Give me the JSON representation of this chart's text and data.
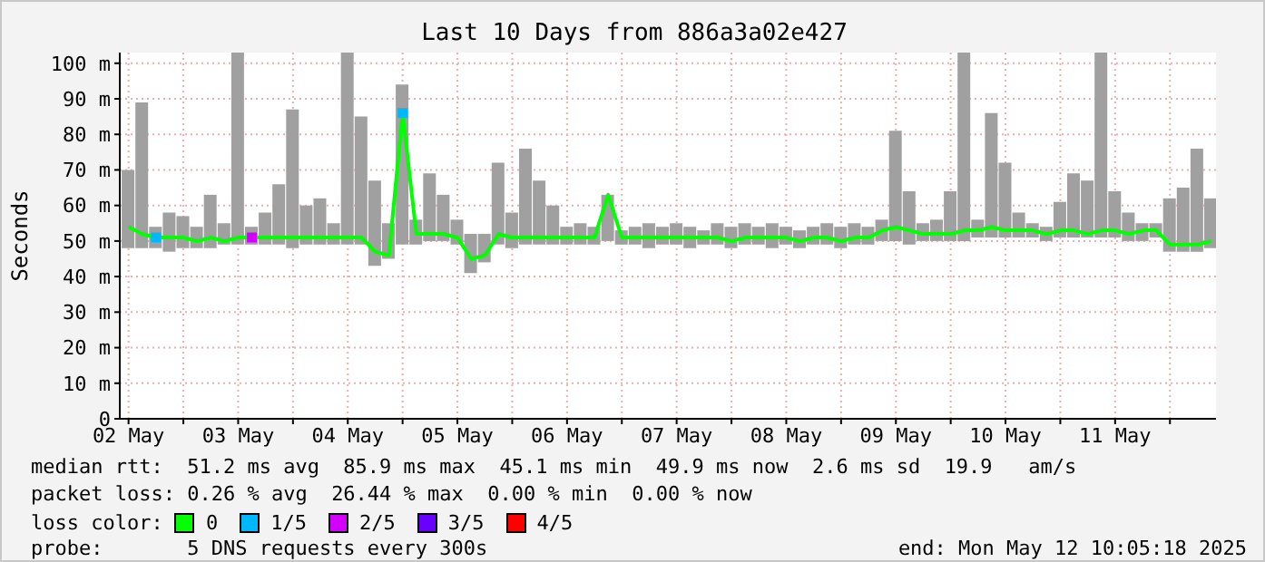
{
  "chart_data": {
    "type": "bar",
    "title": "Last 10 Days from 886a3a02e427",
    "ylabel": "Seconds",
    "annotations": [
      "median rtt:  51.2 ms avg  85.9 ms max  45.1 ms min  49.9 ms now  2.6 ms sd  19.9   am/s",
      "packet loss: 0.26 % avg  26.44 % max  0.00 % min  0.00 % now",
      "loss color:",
      "probe:       5 DNS requests every 300s",
      "end: Mon May 12 10:05:18 2025"
    ],
    "x": [
      "2025-05-02T12:00",
      "2025-05-02T15:00",
      "2025-05-02T18:00",
      "2025-05-02T21:00",
      "2025-05-03T00:00",
      "2025-05-03T03:00",
      "2025-05-03T06:00",
      "2025-05-03T09:00",
      "2025-05-03T12:00",
      "2025-05-03T15:00",
      "2025-05-03T18:00",
      "2025-05-03T21:00",
      "2025-05-04T00:00",
      "2025-05-04T03:00",
      "2025-05-04T06:00",
      "2025-05-04T09:00",
      "2025-05-04T12:00",
      "2025-05-04T15:00",
      "2025-05-04T18:00",
      "2025-05-04T21:00",
      "2025-05-05T00:00",
      "2025-05-05T03:00",
      "2025-05-05T06:00",
      "2025-05-05T09:00",
      "2025-05-05T12:00",
      "2025-05-05T15:00",
      "2025-05-05T18:00",
      "2025-05-05T21:00",
      "2025-05-06T00:00",
      "2025-05-06T03:00",
      "2025-05-06T06:00",
      "2025-05-06T09:00",
      "2025-05-06T12:00",
      "2025-05-06T15:00",
      "2025-05-06T18:00",
      "2025-05-06T21:00",
      "2025-05-07T00:00",
      "2025-05-07T03:00",
      "2025-05-07T06:00",
      "2025-05-07T09:00",
      "2025-05-07T12:00",
      "2025-05-07T15:00",
      "2025-05-07T18:00",
      "2025-05-07T21:00",
      "2025-05-08T00:00",
      "2025-05-08T03:00",
      "2025-05-08T06:00",
      "2025-05-08T09:00",
      "2025-05-08T12:00",
      "2025-05-08T15:00",
      "2025-05-08T18:00",
      "2025-05-08T21:00",
      "2025-05-09T00:00",
      "2025-05-09T03:00",
      "2025-05-09T06:00",
      "2025-05-09T09:00",
      "2025-05-09T12:00",
      "2025-05-09T15:00",
      "2025-05-09T18:00",
      "2025-05-09T21:00",
      "2025-05-10T00:00",
      "2025-05-10T03:00",
      "2025-05-10T06:00",
      "2025-05-10T09:00",
      "2025-05-10T12:00",
      "2025-05-10T15:00",
      "2025-05-10T18:00",
      "2025-05-10T21:00",
      "2025-05-11T00:00",
      "2025-05-11T03:00",
      "2025-05-11T06:00",
      "2025-05-11T09:00",
      "2025-05-11T12:00",
      "2025-05-11T15:00",
      "2025-05-11T18:00",
      "2025-05-11T21:00",
      "2025-05-12T00:00",
      "2025-05-12T03:00",
      "2025-05-12T06:00",
      "2025-05-12T09:00"
    ],
    "series": [
      {
        "color": "#a0a0a0",
        "base": [
          48,
          48,
          48,
          47,
          48,
          48,
          48,
          49,
          49,
          49,
          49,
          49,
          48,
          49,
          49,
          49,
          49,
          49,
          43,
          45,
          49,
          49,
          50,
          50,
          49,
          41,
          44,
          49,
          48,
          49,
          49,
          49,
          49,
          49,
          49,
          50,
          49,
          49,
          48,
          49,
          49,
          48,
          49,
          49,
          48,
          49,
          49,
          48,
          49,
          48,
          49,
          49,
          48,
          49,
          49,
          50,
          50,
          49,
          50,
          50,
          50,
          50,
          51,
          51,
          51,
          51,
          51,
          50,
          51,
          51,
          51,
          51,
          51,
          50,
          50,
          51,
          47,
          47,
          47,
          48
        ],
        "values": [
          22,
          41,
          6,
          11,
          9,
          6,
          15,
          6,
          54,
          5,
          9,
          17,
          39,
          11,
          13,
          6,
          54,
          36,
          24,
          10,
          45,
          7,
          19,
          13,
          7,
          11,
          8,
          23,
          10,
          27,
          18,
          11,
          5,
          6,
          5,
          13,
          4,
          5,
          7,
          5,
          6,
          6,
          4,
          6,
          6,
          6,
          5,
          7,
          5,
          5,
          5,
          6,
          6,
          6,
          5,
          6,
          31,
          15,
          5,
          6,
          14,
          53,
          5,
          35,
          21,
          7,
          4,
          4,
          10,
          18,
          16,
          52,
          13,
          8,
          5,
          4,
          15,
          18,
          29,
          14
        ]
      },
      {
        "name": "0",
        "type": "line",
        "color": "#00ff00",
        "values": [
          54,
          52,
          51,
          51,
          51,
          50,
          51,
          50,
          51,
          51,
          51,
          51,
          51,
          51,
          51,
          51,
          51,
          51,
          47,
          46,
          86,
          52,
          52,
          52,
          51,
          45,
          46,
          52,
          51,
          51,
          51,
          51,
          51,
          51,
          51,
          63,
          51,
          51,
          51,
          51,
          51,
          51,
          51,
          51,
          50,
          51,
          51,
          51,
          51,
          50,
          51,
          51,
          50,
          51,
          51,
          53,
          54,
          53,
          52,
          52,
          52,
          53,
          53,
          54,
          53,
          53,
          53,
          52,
          53,
          53,
          52,
          53,
          53,
          52,
          53,
          53,
          49,
          49,
          49,
          50
        ]
      },
      {
        "name": "1/5",
        "type": "scatter",
        "marker": "square",
        "color": "#00b8ff",
        "x": [
          "2025-05-02T18:00",
          "2025-05-05T00:00"
        ],
        "values": [
          51,
          86
        ]
      },
      {
        "name": "2/5",
        "type": "scatter",
        "marker": "square",
        "color": "#d300ff",
        "x": [
          "2025-05-03T15:00"
        ],
        "values": [
          51
        ]
      },
      {
        "name": "3/5",
        "type": "scatter",
        "marker": "square",
        "color": "#6a00ff",
        "values": [
          null,
          null,
          null,
          null,
          null,
          null,
          null,
          null,
          null,
          null,
          null,
          null,
          null,
          null,
          null,
          null,
          null,
          null,
          null,
          null,
          null,
          null,
          null,
          null,
          null,
          null,
          null,
          null,
          null,
          null,
          null,
          null,
          null,
          null,
          null,
          null,
          null,
          null,
          null,
          null,
          null,
          null,
          null,
          null,
          null,
          null,
          null,
          null,
          null,
          null,
          null,
          null,
          null,
          null,
          null,
          null,
          null,
          null,
          null,
          null,
          null,
          null,
          null,
          null,
          null,
          null,
          null,
          null,
          null,
          null,
          null,
          null,
          null,
          null,
          null,
          null,
          null,
          null,
          null,
          null
        ]
      },
      {
        "name": "4/5",
        "type": "scatter",
        "marker": "square",
        "color": "#ff0000",
        "values": [
          null,
          null,
          null,
          null,
          null,
          null,
          null,
          null,
          null,
          null,
          null,
          null,
          null,
          null,
          null,
          null,
          null,
          null,
          null,
          null,
          null,
          null,
          null,
          null,
          null,
          null,
          null,
          null,
          null,
          null,
          null,
          null,
          null,
          null,
          null,
          null,
          null,
          null,
          null,
          null,
          null,
          null,
          null,
          null,
          null,
          null,
          null,
          null,
          null,
          null,
          null,
          null,
          null,
          null,
          null,
          null,
          null,
          null,
          null,
          null,
          null,
          null,
          null,
          null,
          null,
          null,
          null,
          null,
          null,
          null,
          null,
          null,
          null,
          null,
          null,
          null,
          null,
          null,
          null,
          null
        ]
      }
    ],
    "legend": "bottom",
    "grid": true,
    "xlim": [
      "2025-05-02T10:05",
      "2025-05-12T10:05"
    ],
    "xticks": [
      {
        "value": "2025-05-02T12:00",
        "label": "02 May"
      },
      {
        "value": "2025-05-03T00:00",
        "label": null
      },
      {
        "value": "2025-05-03T12:00",
        "label": "03 May"
      },
      {
        "value": "2025-05-04T00:00",
        "label": null
      },
      {
        "value": "2025-05-04T12:00",
        "label": "04 May"
      },
      {
        "value": "2025-05-05T00:00",
        "label": null
      },
      {
        "value": "2025-05-05T12:00",
        "label": "05 May"
      },
      {
        "value": "2025-05-06T00:00",
        "label": null
      },
      {
        "value": "2025-05-06T12:00",
        "label": "06 May"
      },
      {
        "value": "2025-05-07T00:00",
        "label": null
      },
      {
        "value": "2025-05-07T12:00",
        "label": "07 May"
      },
      {
        "value": "2025-05-08T00:00",
        "label": null
      },
      {
        "value": "2025-05-08T12:00",
        "label": "08 May"
      },
      {
        "value": "2025-05-09T00:00",
        "label": null
      },
      {
        "value": "2025-05-09T12:00",
        "label": "09 May"
      },
      {
        "value": "2025-05-10T00:00",
        "label": null
      },
      {
        "value": "2025-05-10T12:00",
        "label": "10 May"
      },
      {
        "value": "2025-05-11T00:00",
        "label": null
      },
      {
        "value": "2025-05-11T12:00",
        "label": "11 May"
      },
      {
        "value": "2025-05-12T00:00",
        "label": null
      }
    ],
    "ylim": [
      0,
      103
    ],
    "yticks": [
      0,
      {
        "value": 10,
        "label": "10 m"
      },
      {
        "value": 20,
        "label": "20 m"
      },
      {
        "value": 30,
        "label": "30 m"
      },
      {
        "value": 40,
        "label": "40 m"
      },
      {
        "value": 50,
        "label": "50 m"
      },
      {
        "value": 60,
        "label": "60 m"
      },
      {
        "value": 70,
        "label": "70 m"
      },
      {
        "value": 80,
        "label": "80 m"
      },
      {
        "value": 90,
        "label": "90 m"
      },
      {
        "value": 100,
        "label": "100 m"
      }
    ]
  }
}
